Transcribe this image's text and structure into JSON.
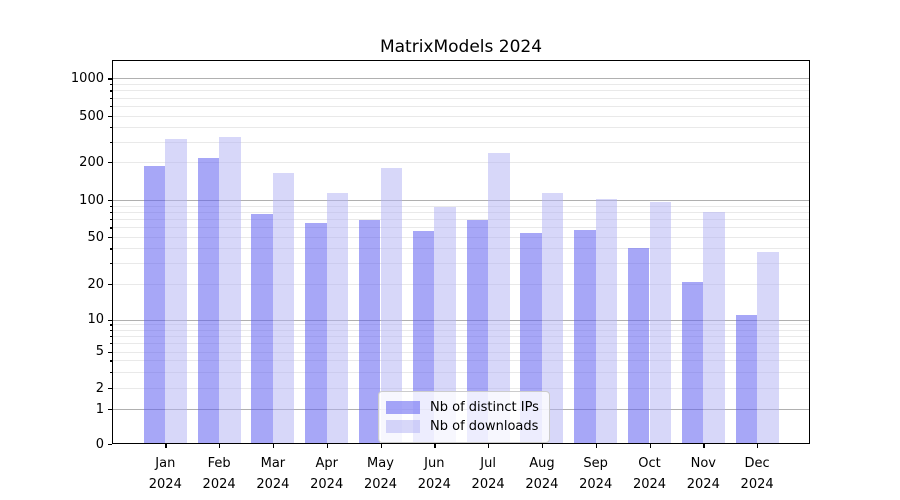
{
  "title": "MatrixModels 2024",
  "chart_data": {
    "type": "bar",
    "title": "MatrixModels 2024",
    "categories": [
      "Jan 2024",
      "Feb 2024",
      "Mar 2024",
      "Apr 2024",
      "May 2024",
      "Jun 2024",
      "Jul 2024",
      "Aug 2024",
      "Sep 2024",
      "Oct 2024",
      "Nov 2024",
      "Dec 2024"
    ],
    "months": [
      "Jan",
      "Feb",
      "Mar",
      "Apr",
      "May",
      "Jun",
      "Jul",
      "Aug",
      "Sep",
      "Oct",
      "Nov",
      "Dec"
    ],
    "year_label": "2024",
    "series": [
      {
        "name": "Nb of distinct IPs",
        "color": "rgba(95,95,240,0.55)",
        "color_hex_on_white": "#a7a7f5",
        "values": [
          185,
          215,
          77,
          65,
          69,
          56,
          69,
          54,
          57,
          40,
          21,
          11
        ]
      },
      {
        "name": "Nb of downloads",
        "color": "rgba(175,175,243,0.5)",
        "color_hex_on_white": "#d7d7f9",
        "values": [
          315,
          330,
          165,
          114,
          180,
          88,
          238,
          114,
          101,
          97,
          80,
          37
        ]
      }
    ],
    "yscale": "symlog",
    "yticks": [
      0,
      1,
      2,
      5,
      10,
      20,
      50,
      100,
      200,
      500,
      1000
    ],
    "ytick_labels": [
      "0",
      "1",
      "2",
      "5",
      "10",
      "20",
      "50",
      "100",
      "200",
      "500",
      "1000"
    ],
    "ylim": [
      0,
      1600
    ],
    "grid": "horizontal, major gray + minor light-gray, visible through translucent bars",
    "legend_position": "lower center inside plot",
    "colors": {
      "major_grid": "#b0b0b0",
      "minor_grid": "#e9e9e9",
      "axis": "#000000",
      "legend_border": "#cccccc"
    }
  },
  "legend": {
    "items": [
      {
        "label": "Nb of distinct IPs"
      },
      {
        "label": "Nb of downloads"
      }
    ]
  }
}
